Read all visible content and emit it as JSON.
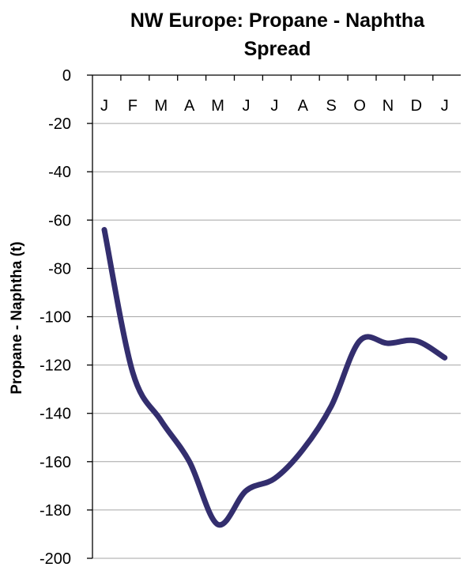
{
  "chart_data": {
    "type": "line",
    "title_lines": [
      "NW Europe: Propane - Naphtha",
      "Spread"
    ],
    "xlabel": "",
    "ylabel": "Propane - Naphtha (t)",
    "categories": [
      "J",
      "F",
      "M",
      "A",
      "M",
      "J",
      "J",
      "A",
      "S",
      "O",
      "N",
      "D",
      "J"
    ],
    "yticks": [
      0,
      -20,
      -40,
      -60,
      -80,
      -100,
      -120,
      -140,
      -160,
      -180,
      -200
    ],
    "ylim": [
      -200,
      0
    ],
    "x_axis_position": "top",
    "grid": "horizontal",
    "series": [
      {
        "color": "#332E6E",
        "values": [
          -64,
          -123,
          -143,
          -160,
          -186,
          -172,
          -167,
          -155,
          -137,
          -110,
          -111,
          -110,
          -117
        ]
      }
    ]
  }
}
